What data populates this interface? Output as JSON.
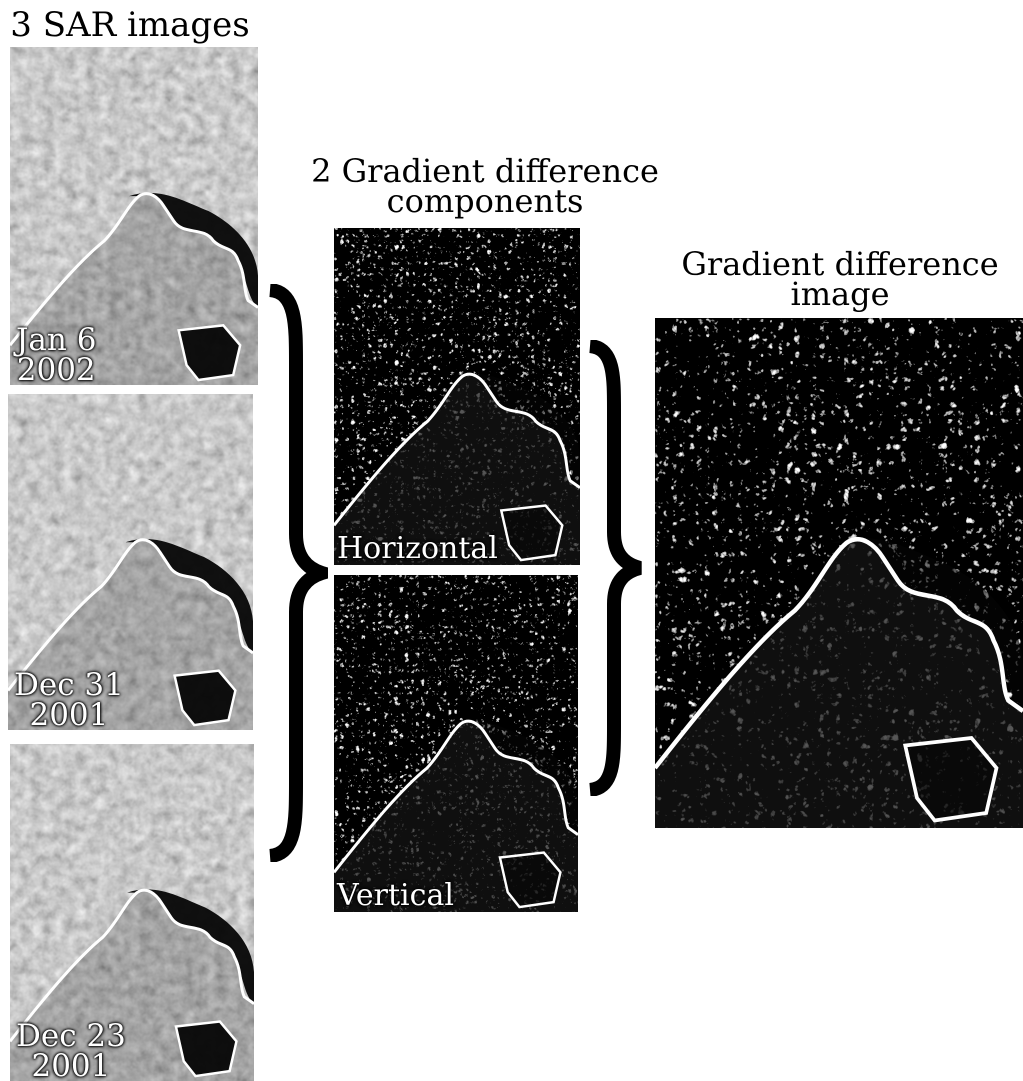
{
  "titles": {
    "sar": "3 SAR images",
    "components_line1": "2 Gradient difference",
    "components_line2": "components",
    "gradient_line1": "Gradient difference",
    "gradient_line2": "image"
  },
  "sar_images": [
    {
      "date_line1": "Jan 6",
      "date_line2": "2002"
    },
    {
      "date_line1": "Dec 31",
      "date_line2": "2001"
    },
    {
      "date_line1": "Dec 23",
      "date_line2": "2001"
    }
  ],
  "components": {
    "horizontal": "Horizontal",
    "vertical": "Vertical"
  },
  "colors": {
    "background": "#ffffff",
    "text": "#000000",
    "brace": "#000000",
    "coastline": "#ffffff",
    "sea": "#050505",
    "sar_land": "#7d7d7d",
    "gradient_dark": "#151515"
  }
}
